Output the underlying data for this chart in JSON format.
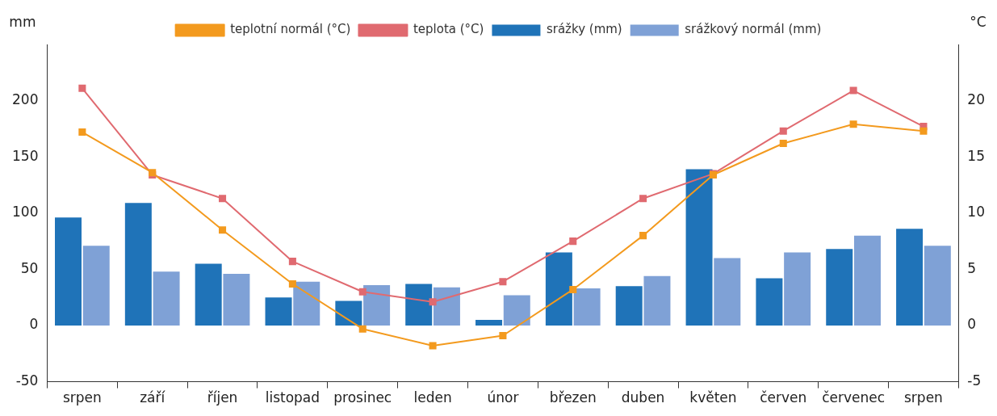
{
  "chart_data": {
    "type": "bar",
    "ylabel": "mm",
    "y2label": "°C",
    "categories": [
      "srpen",
      "září",
      "říjen",
      "listopad",
      "prosinec",
      "leden",
      "únor",
      "březen",
      "duben",
      "květen",
      "červen",
      "červenec",
      "srpen"
    ],
    "series": [
      {
        "name": "srážky (mm)",
        "color": "#1f73b8",
        "values": [
          96,
          109,
          55,
          25,
          22,
          37,
          5,
          65,
          35,
          139,
          42,
          68,
          86
        ]
      },
      {
        "name": "srážkový normál (mm)",
        "color": "#7fa1d6",
        "values": [
          71,
          48,
          46,
          39,
          36,
          34,
          27,
          33,
          44,
          60,
          65,
          80,
          71
        ]
      },
      {
        "name": "teplota (°C)",
        "type": "line",
        "axis": "y2",
        "color": "#e06a70",
        "values": [
          21.1,
          13.4,
          11.3,
          5.7,
          3.0,
          2.1,
          3.9,
          7.5,
          11.3,
          13.5,
          17.3,
          20.9,
          17.7
        ]
      },
      {
        "name": "teplotní normál (°C)",
        "type": "line",
        "axis": "y2",
        "color": "#f39a1e",
        "values": [
          17.2,
          13.6,
          8.5,
          3.7,
          -0.3,
          -1.8,
          -0.9,
          3.2,
          8.0,
          13.4,
          16.2,
          17.9,
          17.3
        ]
      }
    ],
    "ylim": [
      -50,
      250
    ],
    "yticks": [
      -50,
      0,
      50,
      100,
      150,
      200
    ],
    "y2lim": [
      -5,
      25
    ],
    "y2ticks": [
      -5,
      0,
      5,
      10,
      15,
      20
    ],
    "grid": false,
    "legend": "top",
    "marker": "square",
    "line_style": "solid"
  }
}
